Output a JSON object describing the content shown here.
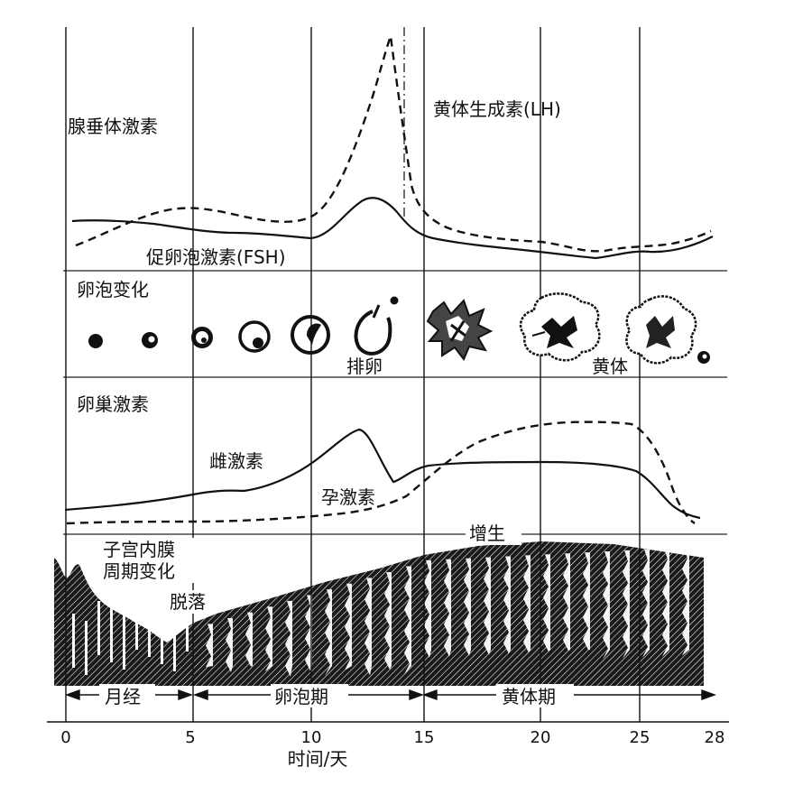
{
  "panels": {
    "pituitary": {
      "label": "腺垂体激素",
      "lh_label": "黄体生成素(LH)",
      "fsh_label": "促卵泡激素(FSH)"
    },
    "follicle": {
      "label": "卵泡变化",
      "ovulation_label": "排卵",
      "corpus_luteum_label": "黄体"
    },
    "ovarian": {
      "label": "卵巢激素",
      "estrogen_label": "雌激素",
      "progesterone_label": "孕激素"
    },
    "endometrium": {
      "label_line1": "子宫内膜",
      "label_line2": "周期变化",
      "shedding_label": "脱落",
      "proliferation_label": "增生"
    }
  },
  "phases": {
    "menstrual": "月经",
    "follicular": "卵泡期",
    "luteal": "黄体期"
  },
  "axis": {
    "label": "时间/天",
    "ticks": [
      "0",
      "5",
      "10",
      "15",
      "20",
      "25",
      "28"
    ]
  }
}
